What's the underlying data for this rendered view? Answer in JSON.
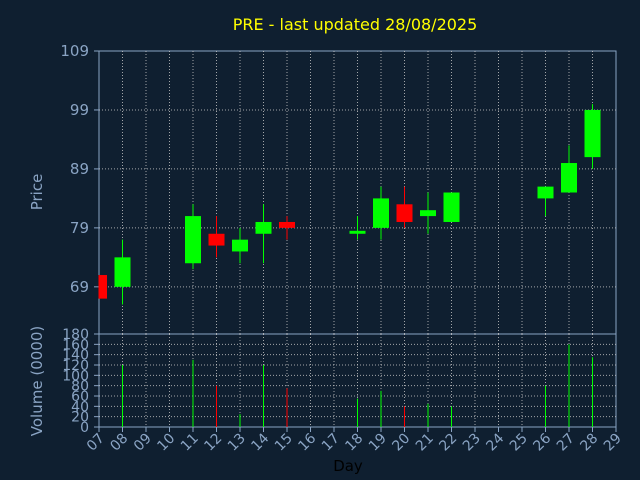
{
  "chart_data": {
    "type": "candlestick",
    "title": "PRE - last updated 28/08/2025",
    "xlabel": "Day",
    "price_ylabel": "Price",
    "volume_ylabel": "Volume (0000)",
    "price_yticks": [
      69,
      79,
      89,
      99,
      109
    ],
    "price_ylim": [
      61,
      109
    ],
    "volume_yticks": [
      0,
      20,
      40,
      60,
      80,
      100,
      120,
      140,
      160,
      180
    ],
    "volume_ylim": [
      0,
      180
    ],
    "x_ticks": [
      "07",
      "08",
      "09",
      "10",
      "11",
      "12",
      "13",
      "14",
      "15",
      "16",
      "17",
      "18",
      "19",
      "20",
      "21",
      "22",
      "23",
      "24",
      "25",
      "26",
      "27",
      "28",
      "29"
    ],
    "grid": true,
    "colors": {
      "background": "#0f1f30",
      "title": "#ffff00",
      "axis_text": "#8aa4c4",
      "up": "#00ff00",
      "down": "#ff0000",
      "frame": "#8aa4c4"
    },
    "candles": [
      {
        "day": "07",
        "open": 71,
        "high": 71,
        "low": 67,
        "close": 67,
        "volume": 0
      },
      {
        "day": "08",
        "open": 69,
        "high": 77,
        "low": 66,
        "close": 74,
        "volume": 120
      },
      {
        "day": "11",
        "open": 73,
        "high": 83,
        "low": 72,
        "close": 81,
        "volume": 130
      },
      {
        "day": "12",
        "open": 78,
        "high": 81,
        "low": 74,
        "close": 76,
        "volume": 80
      },
      {
        "day": "13",
        "open": 75,
        "high": 79,
        "low": 73,
        "close": 77,
        "volume": 25
      },
      {
        "day": "14",
        "open": 78,
        "high": 83,
        "low": 73,
        "close": 80,
        "volume": 120
      },
      {
        "day": "15",
        "open": 80,
        "high": 81,
        "low": 77,
        "close": 79,
        "volume": 75
      },
      {
        "day": "18",
        "open": 78,
        "high": 81,
        "low": 77,
        "close": 78.5,
        "volume": 55
      },
      {
        "day": "19",
        "open": 79,
        "high": 86,
        "low": 77,
        "close": 84,
        "volume": 70
      },
      {
        "day": "20",
        "open": 83,
        "high": 86,
        "low": 79,
        "close": 80,
        "volume": 40
      },
      {
        "day": "21",
        "open": 81,
        "high": 85,
        "low": 78,
        "close": 82,
        "volume": 45
      },
      {
        "day": "22",
        "open": 80,
        "high": 85,
        "low": 80,
        "close": 85,
        "volume": 40
      },
      {
        "day": "26",
        "open": 84,
        "high": 86,
        "low": 81,
        "close": 86,
        "volume": 80
      },
      {
        "day": "27",
        "open": 85,
        "high": 93,
        "low": 85,
        "close": 90,
        "volume": 160
      },
      {
        "day": "28",
        "open": 91,
        "high": 100,
        "low": 89,
        "close": 99,
        "volume": 135
      }
    ]
  }
}
